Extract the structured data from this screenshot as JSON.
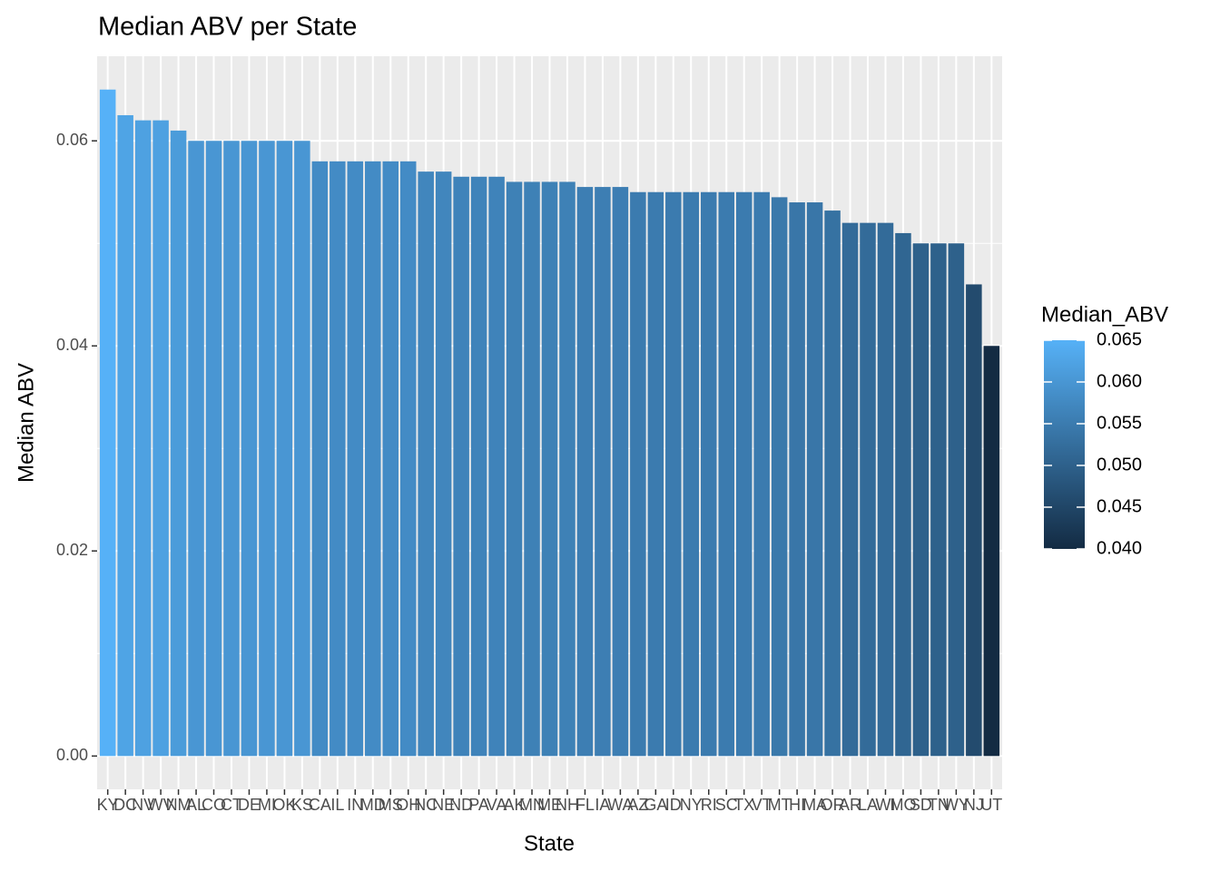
{
  "chart_data": {
    "type": "bar",
    "title": "Median ABV per State",
    "x_label": "State",
    "y_label": "Median ABV",
    "categories": [
      "KY",
      "DC",
      "NV",
      "WV",
      "NM",
      "AL",
      "CO",
      "CT",
      "DE",
      "MI",
      "OK",
      "KS",
      "CA",
      "IL",
      "IN",
      "MD",
      "MS",
      "OH",
      "NC",
      "NE",
      "ND",
      "PA",
      "VA",
      "AK",
      "MN",
      "ME",
      "NH",
      "FL",
      "IA",
      "WA",
      "AZ",
      "GA",
      "ID",
      "NY",
      "RI",
      "SC",
      "TX",
      "VT",
      "MT",
      "HI",
      "MA",
      "OR",
      "AR",
      "LA",
      "WI",
      "MO",
      "SD",
      "TN",
      "WY",
      "NJ",
      "UT"
    ],
    "values": [
      0.065,
      0.0625,
      0.062,
      0.062,
      0.061,
      0.06,
      0.06,
      0.06,
      0.06,
      0.06,
      0.06,
      0.06,
      0.058,
      0.058,
      0.058,
      0.058,
      0.058,
      0.058,
      0.057,
      0.057,
      0.0565,
      0.0565,
      0.0565,
      0.056,
      0.056,
      0.056,
      0.056,
      0.0555,
      0.0555,
      0.0555,
      0.055,
      0.055,
      0.055,
      0.055,
      0.055,
      0.055,
      0.055,
      0.055,
      0.0545,
      0.054,
      0.054,
      0.0532,
      0.052,
      0.052,
      0.052,
      0.051,
      0.05,
      0.05,
      0.05,
      0.046,
      0.04
    ],
    "ylim": [
      -0.00325,
      0.06825
    ],
    "yticks": [
      {
        "value": 0,
        "label": "0.00"
      },
      {
        "value": 0.02,
        "label": "0.02"
      },
      {
        "value": 0.04,
        "label": "0.04"
      },
      {
        "value": 0.06,
        "label": "0.06"
      }
    ],
    "grid": true,
    "legend": {
      "title": "Median_ABV",
      "position": "right",
      "low_color": "#132B43",
      "high_color": "#56B1F7",
      "limits": [
        0.04,
        0.065
      ],
      "ticks": [
        {
          "value": 0.065,
          "label": "0.065"
        },
        {
          "value": 0.06,
          "label": "0.060"
        },
        {
          "value": 0.055,
          "label": "0.055"
        },
        {
          "value": 0.05,
          "label": "0.050"
        },
        {
          "value": 0.045,
          "label": "0.045"
        },
        {
          "value": 0.04,
          "label": "0.040"
        }
      ]
    }
  }
}
